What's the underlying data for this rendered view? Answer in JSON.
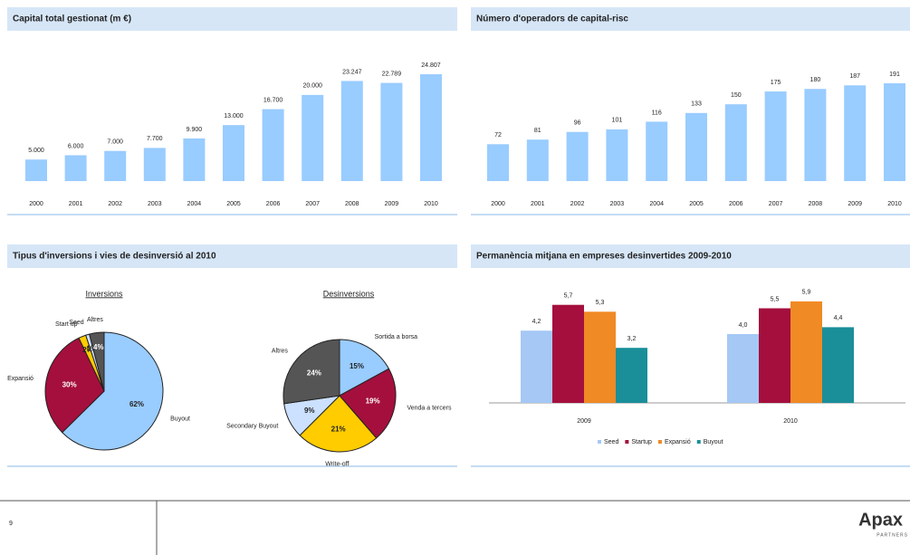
{
  "chart_data": [
    {
      "type": "bar",
      "title": "Capital total gestionat (m €)",
      "categories": [
        "2000",
        "2001",
        "2002",
        "2003",
        "2004",
        "2005",
        "2006",
        "2007",
        "2008",
        "2009",
        "2010"
      ],
      "values": [
        5000,
        6000,
        7000,
        7700,
        9900,
        13000,
        16700,
        20000,
        23247,
        22789,
        24807
      ],
      "value_labels": [
        "5.000",
        "6.000",
        "7.000",
        "7.700",
        "9.900",
        "13.000",
        "16.700",
        "20.000",
        "23.247",
        "22.789",
        "24.807"
      ],
      "color": "#99ccff"
    },
    {
      "type": "bar",
      "title": "Número d'operadors de capital-risc",
      "categories": [
        "2000",
        "2001",
        "2002",
        "2003",
        "2004",
        "2005",
        "2006",
        "2007",
        "2008",
        "2009",
        "2010"
      ],
      "values": [
        72,
        81,
        96,
        101,
        116,
        133,
        150,
        175,
        180,
        187,
        191
      ],
      "color": "#99ccff"
    },
    {
      "type": "pie",
      "title": "Tipus d'inversions i vies de desinversió al 2010",
      "subtitle": "Inversions",
      "categories": [
        "Buyout",
        "Expansió",
        "Start up",
        "Seed",
        "Altres"
      ],
      "values": [
        62,
        30,
        2,
        1,
        4
      ],
      "value_labels": [
        "62%",
        "30%",
        "2%",
        "1%",
        "4%"
      ],
      "colors": [
        "#99ccff",
        "#a50f3d",
        "#ffcc00",
        "#cce0ff",
        "#555555"
      ]
    },
    {
      "type": "pie",
      "subtitle": "Desinversions",
      "categories": [
        "Sortida a borsa",
        "Venda a tercers",
        "Write-off",
        "Secondary Buyout",
        "Altres"
      ],
      "values": [
        15,
        19,
        21,
        9,
        24
      ],
      "value_labels": [
        "15%",
        "19%",
        "21%",
        "9%",
        "24%"
      ],
      "colors": [
        "#99ccff",
        "#a50f3d",
        "#ffcc00",
        "#cce0ff",
        "#555555"
      ]
    },
    {
      "type": "grouped-bar",
      "title": "Permanència mitjana en empreses desinvertides 2009-2010",
      "categories": [
        "2009",
        "2010"
      ],
      "series": [
        {
          "name": "Seed",
          "color": "#a5c8f5",
          "values": [
            4.2,
            4.0
          ],
          "value_labels": [
            "4,2",
            "4,0"
          ]
        },
        {
          "name": "Startup",
          "color": "#a50f3d",
          "values": [
            5.7,
            5.5
          ],
          "value_labels": [
            "5,7",
            "5,5"
          ]
        },
        {
          "name": "Expansió",
          "color": "#f08a24",
          "values": [
            5.3,
            5.9
          ],
          "value_labels": [
            "5,3",
            "5,9"
          ]
        },
        {
          "name": "Buyout",
          "color": "#1a8f9a",
          "values": [
            3.2,
            4.4
          ],
          "value_labels": [
            "3,2",
            "4,4"
          ]
        }
      ]
    }
  ],
  "footer": {
    "page": "9",
    "logo": "Apax",
    "logo_sub": "PARTNERS"
  }
}
